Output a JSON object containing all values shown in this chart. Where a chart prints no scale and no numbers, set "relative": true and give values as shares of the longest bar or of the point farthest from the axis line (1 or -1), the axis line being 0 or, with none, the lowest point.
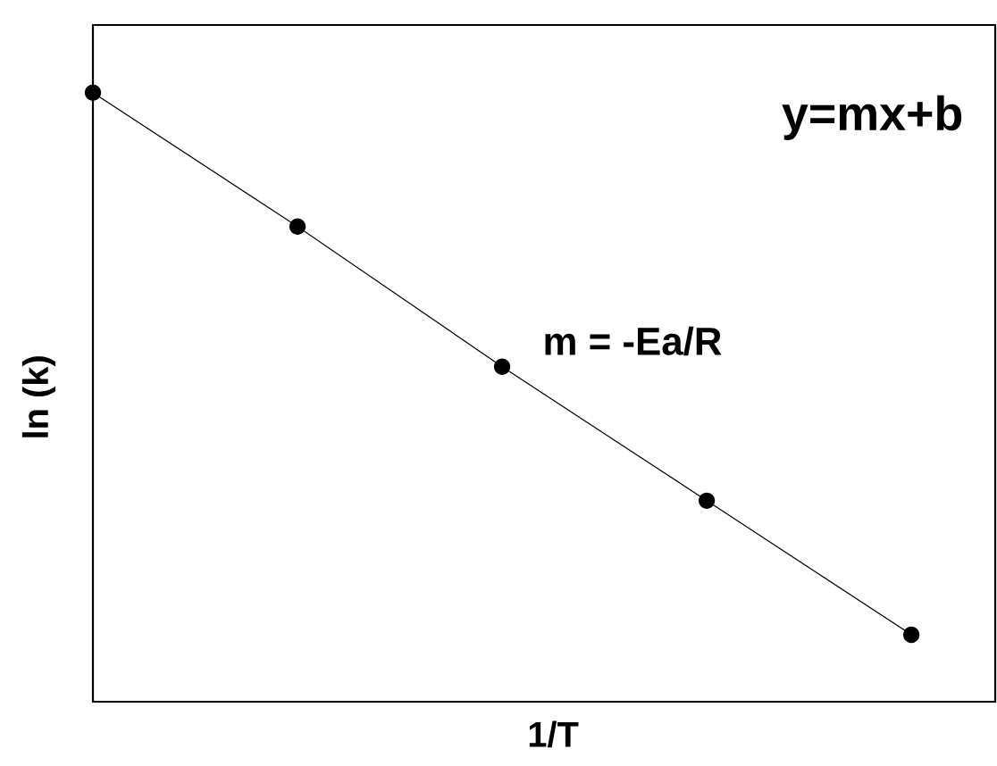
{
  "chart_data": {
    "type": "line",
    "xlabel": "1/T",
    "ylabel": "ln (k)",
    "annotations": [
      "y=mx+b",
      "m = -Ea/R"
    ],
    "categories": [
      null,
      null,
      null,
      null,
      null
    ],
    "relative": true,
    "marker": "circle",
    "line_style": "solid",
    "series": [
      {
        "color": "#000000",
        "values": [
          1,
          0.78,
          0.55,
          0.33,
          0.11
        ]
      }
    ]
  }
}
